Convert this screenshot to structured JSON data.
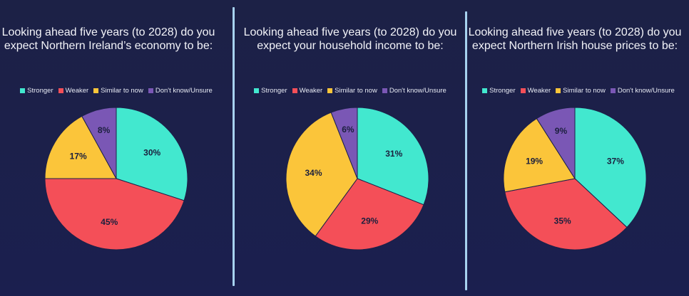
{
  "legend": {
    "labels": [
      "Stronger",
      "Weaker",
      "Similar to now",
      "Don't know/Unsure"
    ],
    "colors": [
      "#42e8cf",
      "#f44f58",
      "#fbc53a",
      "#7a57b5"
    ]
  },
  "chart_data": [
    {
      "type": "pie",
      "title": "Looking ahead five years (to 2028) do you expect Northern Ireland’s economy to be:",
      "categories": [
        "Stronger",
        "Weaker",
        "Similar to now",
        "Don't know/Unsure"
      ],
      "values": [
        30,
        45,
        17,
        8
      ],
      "value_labels": [
        "30%",
        "45%",
        "17%",
        "8%"
      ],
      "legend_placement": "top"
    },
    {
      "type": "pie",
      "title": "Looking ahead five years (to 2028) do you expect your household income to be:",
      "categories": [
        "Stronger",
        "Weaker",
        "Similar to now",
        "Don't know/Unsure"
      ],
      "values": [
        31,
        29,
        34,
        6
      ],
      "value_labels": [
        "31%",
        "29%",
        "34%",
        "6%"
      ],
      "legend_placement": "top"
    },
    {
      "type": "pie",
      "title": "Looking ahead five years (to 2028) do you expect  Northern Irish house prices to be:",
      "categories": [
        "Stronger",
        "Weaker",
        "Similar to now",
        "Don't know/Unsure"
      ],
      "values": [
        37,
        35,
        19,
        9
      ],
      "value_labels": [
        "37%",
        "35%",
        "19%",
        "9%"
      ],
      "legend_placement": "top"
    }
  ]
}
